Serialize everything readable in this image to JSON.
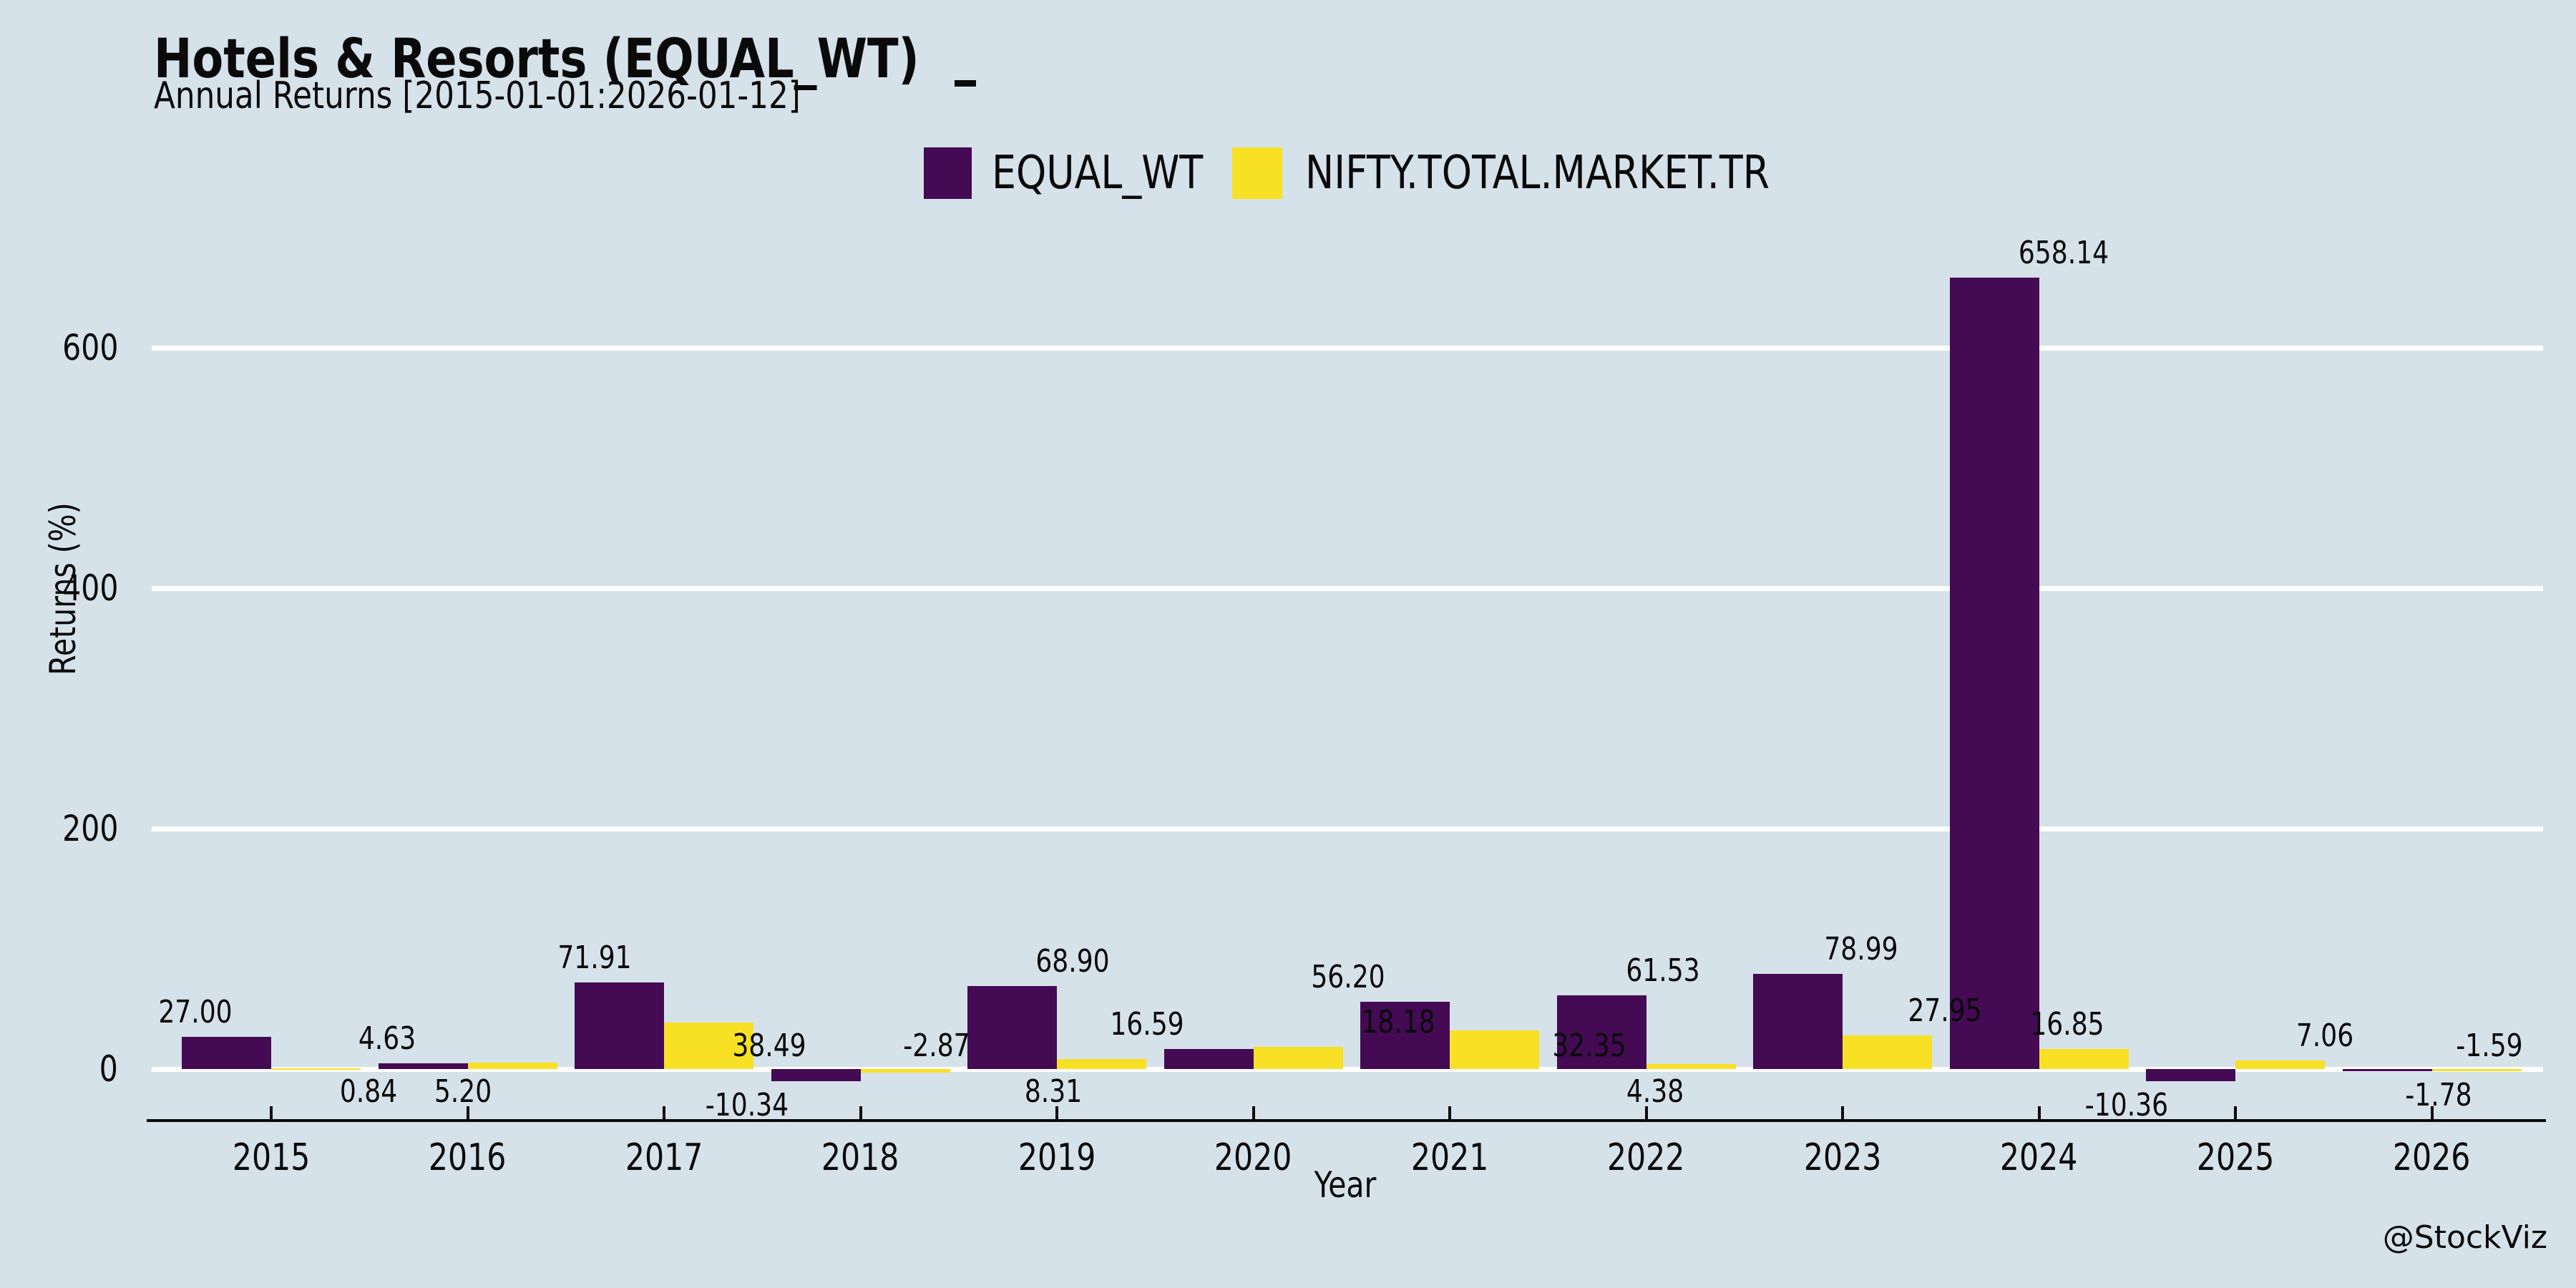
{
  "header": {
    "title": "Hotels & Resorts (EQUAL_WT)",
    "subtitle": "Annual Returns [2015-01-01:2026-01-12]"
  },
  "watermark": "@StockViz",
  "chart_data": {
    "type": "bar",
    "title": "Hotels & Resorts (EQUAL_WT)",
    "subtitle": "Annual Returns [2015-01-01:2026-01-12]",
    "xlabel": "Year",
    "ylabel": "Returns (%)",
    "categories": [
      "2015",
      "2016",
      "2017",
      "2018",
      "2019",
      "2020",
      "2021",
      "2022",
      "2023",
      "2024",
      "2025",
      "2026"
    ],
    "series": [
      {
        "name": "EQUAL_WT",
        "color": "#440a54",
        "values": [
          27.0,
          4.63,
          71.91,
          -10.34,
          68.9,
          16.59,
          56.2,
          61.53,
          78.99,
          658.14,
          -10.36,
          -1.78
        ],
        "label_pos": [
          "above",
          "above",
          "above",
          "below",
          "above",
          "above",
          "above",
          "above",
          "above",
          "above",
          "below",
          "below"
        ],
        "label_dx": [
          -44,
          -50,
          -35,
          -96,
          84,
          -86,
          -80,
          86,
          88,
          97,
          -90,
          72
        ]
      },
      {
        "name": "NIFTY.TOTAL.MARKET.TR",
        "color": "#f8e125",
        "values": [
          0.84,
          5.2,
          38.49,
          -2.87,
          8.31,
          18.18,
          32.35,
          4.38,
          27.95,
          16.85,
          7.06,
          -1.59
        ],
        "label_pos": [
          "base_below",
          "base_below",
          "base_above",
          "base_above",
          "base_below",
          "above",
          "base_above",
          "base_below",
          "above",
          "above",
          "above",
          "base_above"
        ],
        "label_dx": [
          73,
          -69,
          84,
          44,
          -68,
          140,
          132,
          -50,
          80,
          -23,
          62,
          18
        ]
      }
    ],
    "yticks": [
      0,
      200,
      400,
      600
    ],
    "ylim": [
      -43,
      700
    ],
    "grid": "horizontal-white",
    "legend_position": "top-center",
    "value_label_decimals": 2,
    "colors": {
      "background": "#d6e2e9",
      "gridline": "#ffffff",
      "axis": "#0a0a0a",
      "text": "#0a0a0a",
      "series_equal_wt": "#440a54",
      "series_nifty": "#f8e125"
    }
  }
}
